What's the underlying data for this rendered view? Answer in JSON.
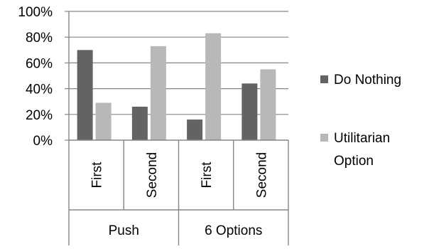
{
  "chart_data": {
    "type": "bar",
    "title": "",
    "xlabel": "",
    "ylabel": "",
    "ylim": [
      0,
      100
    ],
    "y_ticks": [
      "0%",
      "20%",
      "40%",
      "60%",
      "80%",
      "100%"
    ],
    "y_unit": "%",
    "groups": [
      {
        "label": "Push",
        "categories": [
          "First",
          "Second"
        ]
      },
      {
        "label": "6 Options",
        "categories": [
          "First",
          "Second"
        ]
      }
    ],
    "categories": [
      "Push | First",
      "Push | Second",
      "6 Options | First",
      "6 Options | Second"
    ],
    "series": [
      {
        "name": "Do Nothing",
        "color": "#636363",
        "values": [
          70,
          26,
          16,
          44
        ]
      },
      {
        "name": "Utilitarian Option",
        "color": "#b8b8b8",
        "values": [
          29,
          73,
          83,
          55
        ]
      }
    ],
    "grid": true,
    "legend_position": "right"
  }
}
